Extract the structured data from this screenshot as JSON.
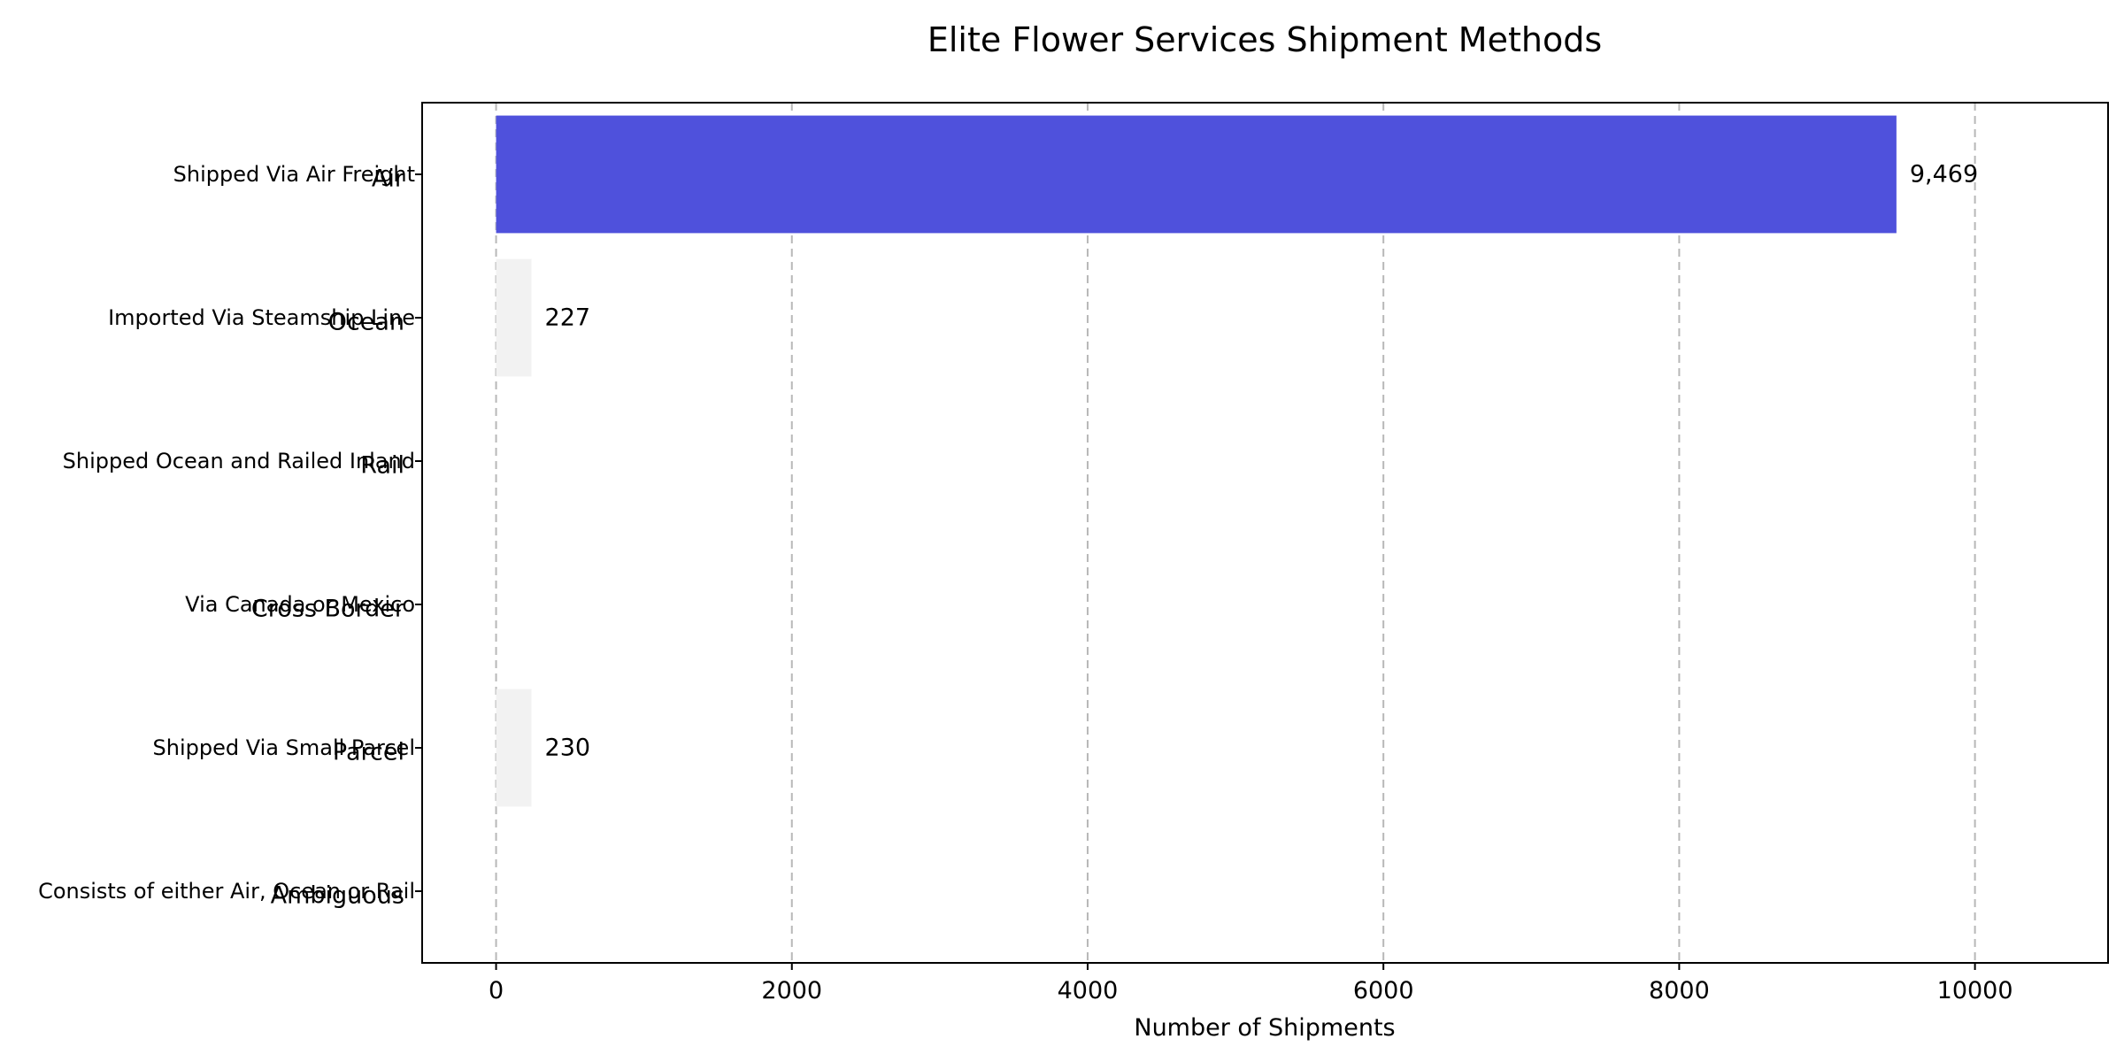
{
  "chart_data": {
    "type": "bar",
    "orientation": "horizontal",
    "title": "Elite Flower Services Shipment Methods",
    "xlabel": "Number of Shipments",
    "ylabel": "",
    "xlim": [
      -500,
      10900
    ],
    "xticks": [
      0,
      2000,
      4000,
      6000,
      8000,
      10000
    ],
    "grid": "x-dashed",
    "legend": "none",
    "categories": [
      {
        "short": "Air",
        "description": "Shipped Via Air Freight"
      },
      {
        "short": "Ocean",
        "description": "Imported Via Steamship Line"
      },
      {
        "short": "Rail",
        "description": "Shipped Ocean and Railed Inland"
      },
      {
        "short": "Cross Border",
        "description": "Via Canada or Mexico"
      },
      {
        "short": "Parcel",
        "description": "Shipped Via Small Parcel"
      },
      {
        "short": "Ambiguous",
        "description": "Consists of either Air, Ocean or Rail"
      }
    ],
    "values": [
      9469,
      227,
      0,
      0,
      230,
      0
    ],
    "value_labels": [
      "9,469",
      "227",
      "",
      "",
      "230",
      ""
    ],
    "colors": {
      "highlight": "#4f51dc",
      "default": "#f2f2f2",
      "grid": "#b8b8b8",
      "axis": "#000000"
    },
    "highlight_index": 0
  }
}
